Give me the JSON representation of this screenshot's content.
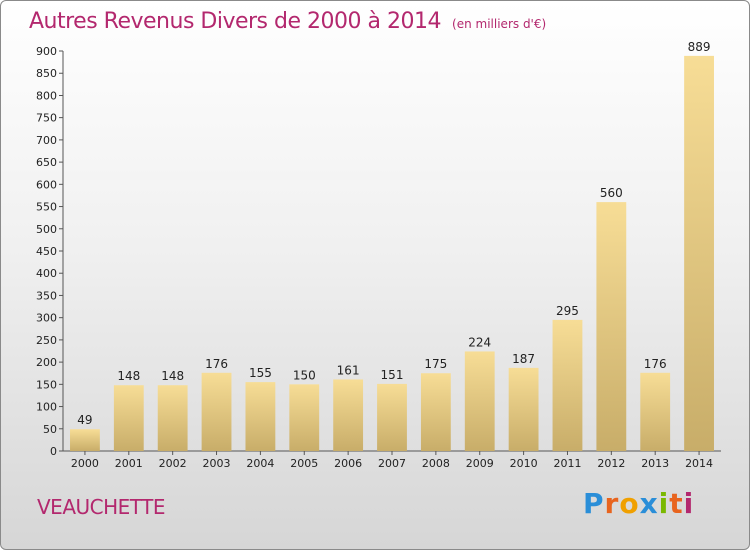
{
  "header": {
    "title": "Autres Revenus Divers de 2000 à 2014",
    "unit": "(en milliers d'€)"
  },
  "footer": {
    "commune": "VEAUCHETTE",
    "logo": "Proxiti"
  },
  "colors": {
    "title": "#b3286e",
    "bar_light": "#f7dd96",
    "bar_dark": "#c8ad69"
  },
  "chart_data": {
    "type": "bar",
    "title": "Autres Revenus Divers de 2000 à 2014",
    "xlabel": "",
    "ylabel": "",
    "categories": [
      "2000",
      "2001",
      "2002",
      "2003",
      "2004",
      "2005",
      "2006",
      "2007",
      "2008",
      "2009",
      "2010",
      "2011",
      "2012",
      "2013",
      "2014"
    ],
    "values": [
      49,
      148,
      148,
      176,
      155,
      150,
      161,
      151,
      175,
      224,
      187,
      295,
      560,
      176,
      889
    ],
    "ylim": [
      0,
      900
    ],
    "yticks": [
      0,
      50,
      100,
      150,
      200,
      250,
      300,
      350,
      400,
      450,
      500,
      550,
      600,
      650,
      700,
      750,
      800,
      850,
      900
    ],
    "grid": false,
    "legend": "none"
  }
}
